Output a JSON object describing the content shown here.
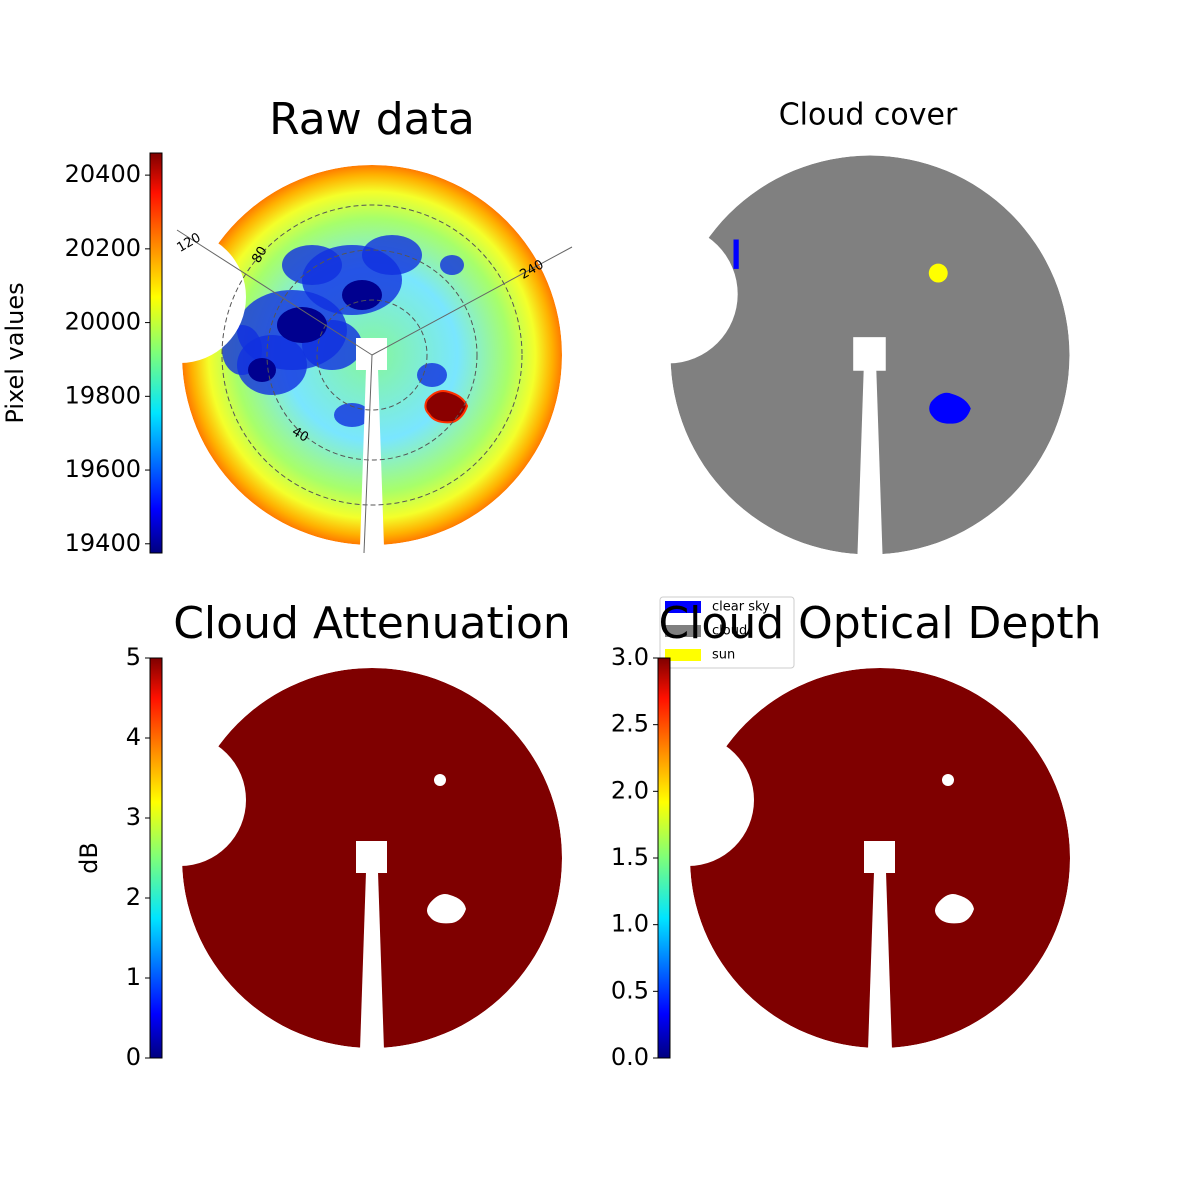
{
  "chart_data": [
    {
      "type": "heatmap",
      "title": "Raw data",
      "colorbar": {
        "label": "Pixel values",
        "lim": [
          19375,
          20460
        ],
        "ticks": [
          19400,
          19600,
          19800,
          20000,
          20200,
          20400
        ]
      },
      "polar_labels": [
        "120",
        "80",
        "240",
        "40"
      ]
    },
    {
      "type": "categorical",
      "title": "Cloud cover",
      "legend": [
        {
          "name": "clear sky",
          "color": "#0000ff"
        },
        {
          "name": "cloud",
          "color": "#808080"
        },
        {
          "name": "sun",
          "color": "#ffff00"
        }
      ]
    },
    {
      "type": "uniform",
      "title": "Cloud Attenuation",
      "color": "#7f0000",
      "colorbar": {
        "label": "dB",
        "lim": [
          0,
          5
        ],
        "ticks": [
          0,
          1,
          2,
          3,
          4,
          5
        ]
      }
    },
    {
      "type": "uniform",
      "title": "Cloud Optical Depth",
      "color": "#7f0000",
      "colorbar": {
        "lim": [
          0,
          3
        ],
        "ticks": [
          {
            "value": 0,
            "label": "0.0"
          },
          {
            "value": 0.5,
            "label": "0.5"
          },
          {
            "value": 1,
            "label": "1.0"
          },
          {
            "value": 1.5,
            "label": "1.5"
          },
          {
            "value": 2,
            "label": "2.0"
          },
          {
            "value": 2.5,
            "label": "2.5"
          },
          {
            "value": 3,
            "label": "3.0"
          }
        ]
      }
    }
  ]
}
